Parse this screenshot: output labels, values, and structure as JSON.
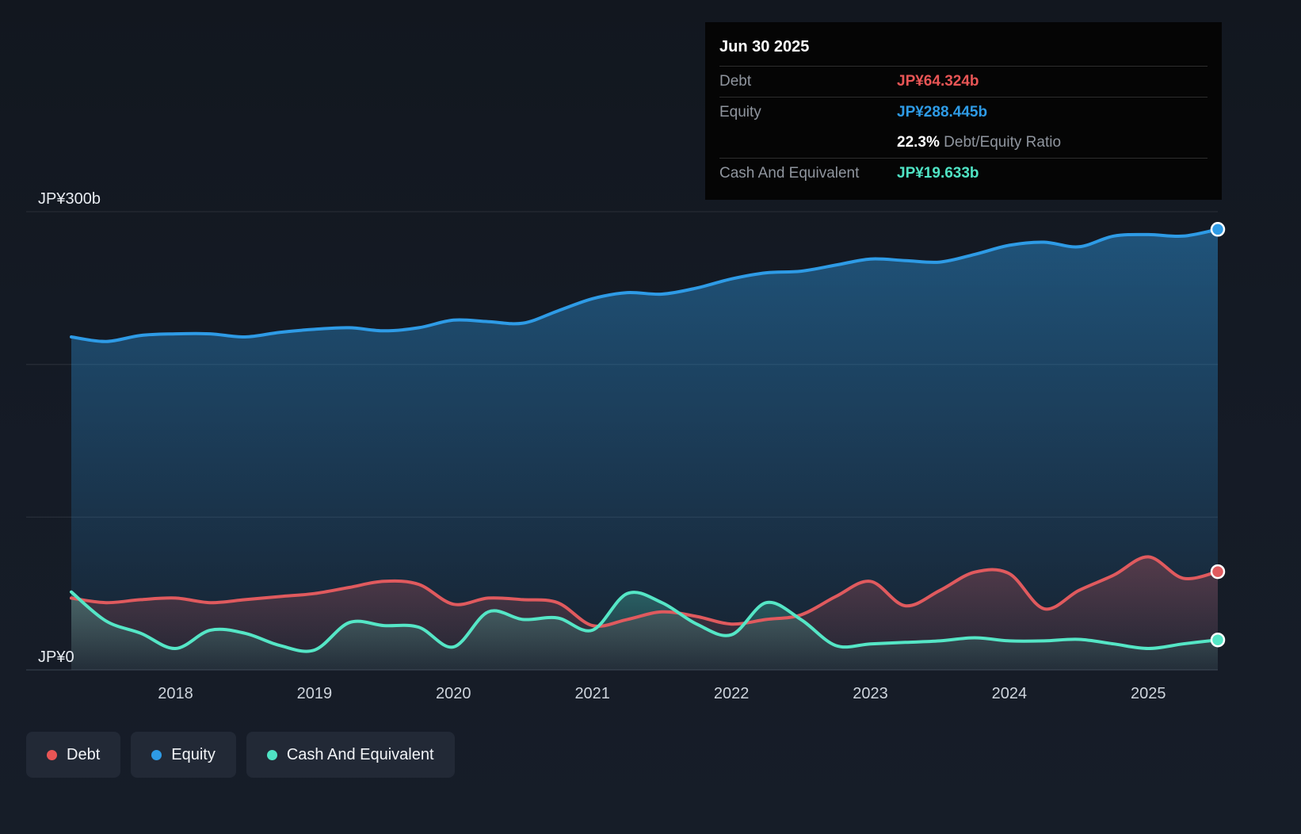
{
  "tooltip": {
    "date": "Jun 30 2025",
    "debt_label": "Debt",
    "debt_value": "JP¥64.324b",
    "equity_label": "Equity",
    "equity_value": "JP¥288.445b",
    "ratio_value": "22.3%",
    "ratio_label": "Debt/Equity Ratio",
    "cash_label": "Cash And Equivalent",
    "cash_value": "JP¥19.633b",
    "colors": {
      "debt": "#e85555",
      "equity": "#2e9be6",
      "cash": "#4fe3c4"
    }
  },
  "legend": {
    "items": [
      {
        "label": "Debt",
        "color": "#e85555"
      },
      {
        "label": "Equity",
        "color": "#2e9be6"
      },
      {
        "label": "Cash And Equivalent",
        "color": "#4fe3c4"
      }
    ]
  },
  "chart_data": {
    "type": "area",
    "unit": "JP¥ billions",
    "ylim": [
      0,
      300
    ],
    "y_gridlines": [
      0,
      100,
      200,
      300
    ],
    "y_axis_labels": [
      {
        "value": 300,
        "label": "JP¥300b"
      },
      {
        "value": 0,
        "label": "JP¥0"
      }
    ],
    "x_ticks": [
      2018,
      2019,
      2020,
      2021,
      2022,
      2023,
      2024,
      2025
    ],
    "x": [
      2017.25,
      2017.5,
      2017.75,
      2018.0,
      2018.25,
      2018.5,
      2018.75,
      2019.0,
      2019.25,
      2019.5,
      2019.75,
      2020.0,
      2020.25,
      2020.5,
      2020.75,
      2021.0,
      2021.25,
      2021.5,
      2021.75,
      2022.0,
      2022.25,
      2022.5,
      2022.75,
      2023.0,
      2023.25,
      2023.5,
      2023.75,
      2024.0,
      2024.25,
      2024.5,
      2024.75,
      2025.0,
      2025.25,
      2025.5
    ],
    "series": [
      {
        "name": "Equity",
        "color": "#2e9be6",
        "fill_top": 0.45,
        "fill_bottom": 0.04,
        "values": [
          218,
          215,
          219,
          220,
          220,
          218,
          221,
          223,
          224,
          222,
          224,
          229,
          228,
          227,
          235,
          243,
          247,
          246,
          250,
          256,
          260,
          261,
          265,
          269,
          268,
          267,
          272,
          278,
          280,
          277,
          284,
          285,
          284,
          288.445
        ]
      },
      {
        "name": "Debt",
        "color": "#e05a5e",
        "fill_top": 0.3,
        "fill_bottom": 0.05,
        "values": [
          47,
          44,
          46,
          47,
          44,
          46,
          48,
          50,
          54,
          58,
          56,
          43,
          47,
          46,
          44,
          29,
          33,
          38,
          35,
          30,
          33,
          36,
          48,
          58,
          42,
          52,
          64,
          63,
          40,
          52,
          62,
          74,
          60,
          64.324
        ]
      },
      {
        "name": "Cash And Equivalent",
        "color": "#55e6c6",
        "fill_top": 0.28,
        "fill_bottom": 0.05,
        "values": [
          51,
          32,
          24,
          14,
          26,
          24,
          16,
          13,
          31,
          29,
          28,
          15,
          38,
          33,
          34,
          26,
          50,
          44,
          30,
          23,
          44,
          33,
          16,
          17,
          18,
          19,
          21,
          19,
          19,
          20,
          17,
          14,
          17,
          19.633
        ]
      }
    ],
    "legend_position": "bottom-left",
    "grid": true
  }
}
